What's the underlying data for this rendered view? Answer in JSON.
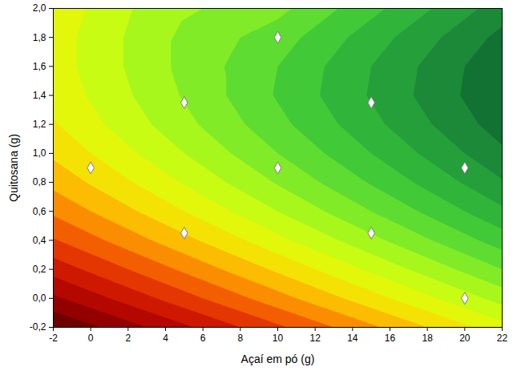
{
  "chart_data": {
    "type": "contour",
    "x_label": "Açaí em pó (g)",
    "y_label": "Quitosana (g)",
    "xlim": [
      -2,
      22
    ],
    "ylim": [
      -0.2,
      2.0
    ],
    "xticks": [
      -2,
      0,
      2,
      4,
      6,
      8,
      10,
      12,
      14,
      16,
      18,
      20,
      22
    ],
    "yticks": [
      {
        "value": -0.2,
        "label": "-0,2"
      },
      {
        "value": 0.0,
        "label": "0,0"
      },
      {
        "value": 0.2,
        "label": "0,2"
      },
      {
        "value": 0.4,
        "label": "0,4"
      },
      {
        "value": 0.6,
        "label": "0,6"
      },
      {
        "value": 0.8,
        "label": "0,8"
      },
      {
        "value": 1.0,
        "label": "1,0"
      },
      {
        "value": 1.2,
        "label": "1,2"
      },
      {
        "value": 1.4,
        "label": "1,4"
      },
      {
        "value": 1.6,
        "label": "1,6"
      },
      {
        "value": 1.8,
        "label": "1,8"
      },
      {
        "value": 2.0,
        "label": "2,0"
      }
    ],
    "grid": false,
    "marker": "diamond",
    "points": {
      "x": [
        0,
        5,
        5,
        10,
        10,
        15,
        15,
        20,
        20
      ],
      "y": [
        0.9,
        0.45,
        1.35,
        0.9,
        1.8,
        0.45,
        1.35,
        0.9,
        0.0
      ]
    },
    "zlim": [
      0,
      19
    ],
    "surface": {
      "x": [
        -2,
        0,
        2,
        4,
        6,
        8,
        10,
        12,
        14,
        16,
        18,
        20,
        22
      ],
      "y": [
        -0.2,
        0.0,
        0.2,
        0.4,
        0.6,
        0.8,
        1.0,
        1.2,
        1.4,
        1.6,
        1.8,
        2.0
      ],
      "z": [
        [
          0.0,
          0.8,
          1.6,
          2.4,
          3.2,
          4.0,
          4.8,
          5.6,
          6.4,
          7.2,
          8.0,
          8.8,
          9.6
        ],
        [
          1.8,
          2.6,
          3.4,
          4.2,
          5.0,
          5.8,
          6.6,
          7.4,
          8.2,
          9.0,
          9.8,
          10.6,
          11.4
        ],
        [
          3.4,
          4.2,
          5.0,
          5.8,
          6.6,
          7.4,
          8.2,
          9.0,
          9.8,
          10.6,
          11.4,
          12.2,
          13.0
        ],
        [
          4.9,
          5.7,
          6.5,
          7.3,
          8.1,
          8.9,
          9.7,
          10.5,
          11.3,
          12.1,
          12.9,
          13.7,
          14.5
        ],
        [
          6.2,
          7.0,
          7.8,
          8.6,
          9.4,
          10.2,
          11.0,
          11.8,
          12.6,
          13.4,
          14.2,
          15.0,
          15.8
        ],
        [
          7.3,
          8.1,
          8.9,
          9.7,
          10.5,
          11.3,
          12.1,
          12.9,
          13.7,
          14.5,
          15.3,
          16.1,
          16.9
        ],
        [
          8.2,
          9.0,
          9.8,
          10.6,
          11.4,
          12.2,
          13.0,
          13.8,
          14.6,
          15.4,
          16.2,
          17.0,
          17.8
        ],
        [
          8.9,
          9.7,
          10.5,
          11.3,
          12.1,
          12.9,
          13.7,
          14.5,
          15.3,
          16.1,
          16.9,
          17.7,
          18.5
        ],
        [
          9.3,
          10.1,
          10.9,
          11.7,
          12.5,
          13.3,
          14.1,
          14.9,
          15.7,
          16.5,
          17.3,
          18.1,
          18.9
        ],
        [
          9.5,
          10.3,
          11.1,
          11.9,
          12.6,
          13.3,
          14.0,
          14.8,
          15.6,
          16.4,
          17.2,
          18.0,
          18.8
        ],
        [
          9.5,
          10.3,
          11.1,
          11.9,
          12.4,
          13.0,
          13.5,
          14.3,
          15.1,
          15.9,
          16.7,
          17.5,
          18.3
        ],
        [
          9.3,
          10.1,
          10.9,
          11.7,
          12.0,
          12.4,
          12.7,
          13.5,
          14.3,
          15.1,
          15.9,
          16.7,
          17.5
        ]
      ]
    }
  }
}
